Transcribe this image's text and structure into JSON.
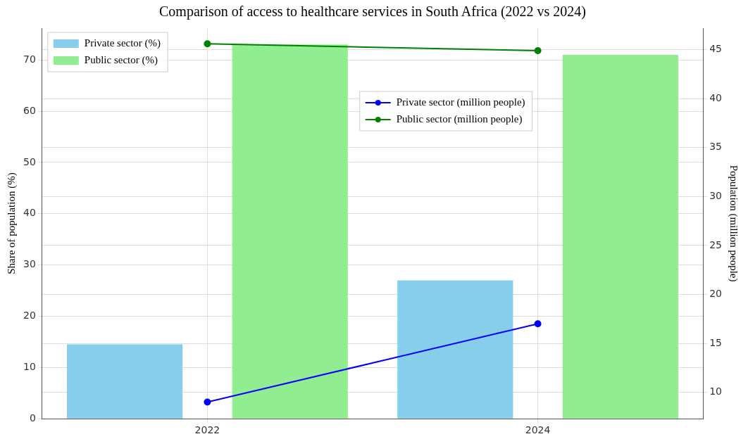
{
  "chart_data": {
    "type": "bar",
    "title": "Comparison of access to healthcare services in South Africa (2022 vs 2024)",
    "categories": [
      "2022",
      "2024"
    ],
    "series": [
      {
        "name": "Private sector (%)",
        "color": "#87ceeb",
        "values": [
          14.5,
          27
        ]
      },
      {
        "name": "Public sector (%)",
        "color": "#90ee90",
        "values": [
          73,
          71
        ]
      },
      {
        "name": "Private sector (million people)",
        "type": "line",
        "axis": "y2",
        "color": "#0000ff",
        "values": [
          9,
          17
        ]
      },
      {
        "name": "Public sector (million people)",
        "type": "line",
        "axis": "y2",
        "color": "#008000",
        "values": [
          45.6,
          44.9
        ]
      }
    ],
    "ylabel": "Share of population (%)",
    "y2label": "Population (million people)",
    "ylim": [
      0,
      76.2
    ],
    "yticks": [
      0,
      10,
      20,
      30,
      40,
      50,
      60,
      70
    ],
    "y2lim": [
      7.3,
      47.2
    ],
    "y2ticks": [
      10,
      15,
      20,
      25,
      30,
      35,
      40,
      45
    ],
    "grid": true,
    "legend": "top",
    "marker": "circle",
    "line_style": "solid"
  }
}
